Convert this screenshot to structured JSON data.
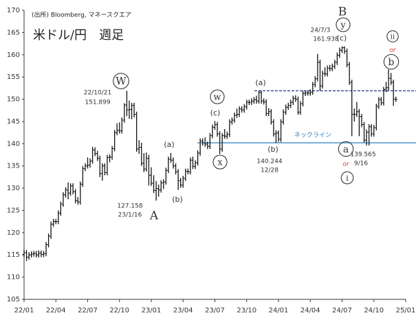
{
  "chart_data": {
    "type": "ohlc",
    "title": "米ドル/円　週足",
    "source": "(出所) Bloomberg, マネースクエア",
    "categories": [
      "22/01",
      null,
      null,
      null,
      null,
      null,
      null,
      null,
      null,
      null,
      null,
      null,
      null,
      "22/04",
      null,
      null,
      null,
      null,
      null,
      null,
      null,
      null,
      null,
      null,
      null,
      null,
      "22/07",
      null,
      null,
      null,
      null,
      null,
      null,
      null,
      null,
      null,
      null,
      null,
      null,
      "22/10",
      null,
      null,
      null,
      null,
      null,
      null,
      null,
      null,
      null,
      null,
      null,
      null,
      "23/01",
      null,
      null,
      null,
      null,
      null,
      null,
      null,
      null,
      null,
      null,
      null,
      null,
      "23/04",
      null,
      null,
      null,
      null,
      null,
      null,
      null,
      null,
      null,
      null,
      null,
      null,
      "23/07",
      null,
      null,
      null,
      null,
      null,
      null,
      null,
      null,
      null,
      null,
      null,
      null,
      "23/10",
      null,
      null,
      null,
      null,
      null,
      null,
      null,
      null,
      null,
      null,
      null,
      null,
      "24/01",
      null,
      null,
      null,
      null,
      null,
      null,
      null,
      null,
      null,
      null,
      null,
      null,
      "24/04",
      null,
      null,
      null,
      null,
      null,
      null,
      null,
      null,
      null,
      null,
      null,
      null,
      "24/07",
      null,
      null,
      null,
      null,
      null,
      null,
      null,
      null,
      null,
      null,
      null,
      null,
      "24/10",
      null,
      null,
      null,
      null,
      null,
      null,
      null,
      null,
      null,
      null,
      null,
      null,
      "25/01"
    ],
    "open": [
      115.1,
      115.5,
      114.5,
      115.0,
      115.2,
      115.3,
      115.0,
      115.4,
      115.1,
      115.3,
      117.3,
      119.2,
      121.9,
      122.5,
      122.5,
      124.4,
      126.4,
      128.5,
      129.6,
      128.9,
      130.5,
      129.2,
      127.2,
      126.9,
      130.9,
      134.4,
      135.0,
      135.2,
      136.1,
      138.6,
      137.8,
      136.7,
      133.3,
      135.0,
      133.5,
      136.9,
      137.0,
      138.9,
      142.5,
      143.0,
      142.9,
      145.3,
      148.7,
      147.6,
      147.7,
      148.6,
      146.6,
      138.8,
      139.2,
      135.6,
      134.3,
      136.7,
      132.9,
      131.1,
      129.5,
      129.9,
      129.6,
      131.2,
      131.4,
      134.0,
      136.5,
      136.3,
      135.0,
      133.7,
      131.7,
      130.7,
      132.2,
      133.8,
      133.7,
      136.3,
      134.9,
      135.7,
      137.9,
      140.6,
      140.2,
      139.9,
      139.4,
      141.8,
      143.7,
      144.3,
      142.2,
      138.8,
      141.8,
      141.7,
      142.1,
      144.9,
      145.3,
      146.4,
      146.6,
      147.8,
      147.6,
      148.3,
      149.3,
      149.3,
      149.6,
      149.9,
      149.6,
      151.5,
      149.6,
      149.4,
      146.8,
      147.2,
      144.9,
      142.2,
      142.4,
      141.0,
      144.9,
      147.1,
      148.2,
      148.6,
      149.3,
      150.2,
      150.0,
      147.1,
      149.0,
      151.3,
      151.4,
      151.4,
      151.6,
      153.3,
      154.6,
      158.3,
      153.0,
      155.8,
      155.7,
      157.0,
      156.9,
      157.4,
      158.3,
      159.9,
      161.0,
      161.6,
      160.8,
      157.8,
      153.8,
      146.6,
      146.6,
      147.2,
      146.1,
      144.3,
      140.8,
      142.6,
      143.8,
      142.2,
      143.6,
      148.4,
      149.9,
      149.2,
      152.2,
      152.6,
      154.7,
      153.8,
      150.0,
      null,
      null,
      null,
      null
    ],
    "high": [
      116.1,
      116.1,
      115.6,
      115.8,
      115.9,
      115.9,
      116.0,
      116.0,
      115.9,
      117.9,
      119.8,
      122.5,
      123.1,
      123.1,
      125.0,
      127.0,
      129.1,
      130.2,
      131.3,
      131.1,
      131.1,
      129.8,
      128.0,
      131.5,
      135.0,
      135.6,
      136.9,
      136.7,
      139.3,
      139.2,
      138.4,
      137.3,
      135.6,
      135.6,
      137.5,
      137.6,
      139.5,
      143.1,
      144.6,
      144.8,
      145.9,
      149.1,
      151.9,
      149.7,
      149.2,
      149.2,
      147.2,
      140.8,
      140.2,
      137.9,
      138.0,
      137.5,
      134.7,
      132.9,
      131.6,
      130.8,
      131.8,
      132.0,
      134.6,
      137.1,
      137.9,
      136.9,
      135.6,
      134.3,
      132.3,
      132.8,
      134.4,
      134.4,
      136.9,
      137.1,
      136.3,
      138.5,
      141.2,
      141.2,
      141.4,
      140.5,
      142.4,
      144.3,
      145.1,
      144.9,
      142.8,
      142.4,
      143.3,
      142.7,
      145.5,
      145.9,
      147.0,
      147.9,
      148.4,
      148.4,
      148.9,
      149.9,
      149.9,
      150.2,
      150.5,
      150.8,
      151.9,
      151.9,
      150.2,
      150.0,
      148.0,
      147.8,
      145.5,
      143.0,
      143.0,
      145.5,
      147.7,
      148.8,
      149.2,
      149.9,
      150.8,
      150.9,
      150.6,
      149.6,
      151.9,
      151.9,
      152.0,
      152.2,
      153.9,
      155.2,
      160.2,
      158.9,
      156.4,
      157.2,
      157.6,
      157.7,
      158.0,
      158.9,
      160.5,
      161.6,
      161.9,
      161.9,
      161.4,
      158.4,
      154.4,
      147.9,
      149.4,
      147.8,
      146.7,
      144.9,
      143.2,
      144.4,
      144.4,
      144.2,
      149.0,
      150.5,
      150.5,
      152.8,
      153.9,
      156.7,
      155.9,
      154.4,
      150.6,
      null,
      null,
      null,
      null
    ],
    "low": [
      114.5,
      113.6,
      113.9,
      114.4,
      114.6,
      114.4,
      114.4,
      114.5,
      114.5,
      114.7,
      116.7,
      118.6,
      121.3,
      121.9,
      121.9,
      123.8,
      125.8,
      127.9,
      127.5,
      128.3,
      128.6,
      126.6,
      126.3,
      126.3,
      130.3,
      133.8,
      134.4,
      134.6,
      135.5,
      137.2,
      136.1,
      132.5,
      131.7,
      132.9,
      132.9,
      135.8,
      136.4,
      138.3,
      141.9,
      142.3,
      142.3,
      144.7,
      146.2,
      145.6,
      145.5,
      145.9,
      138.2,
      137.7,
      135.0,
      133.6,
      133.7,
      130.6,
      130.5,
      128.9,
      127.2,
      128.1,
      129.0,
      129.8,
      130.8,
      133.4,
      135.7,
      134.4,
      133.1,
      129.6,
      130.1,
      130.1,
      131.6,
      133.1,
      133.1,
      134.3,
      134.3,
      135.1,
      137.3,
      139.6,
      139.3,
      138.8,
      138.8,
      141.2,
      143.1,
      141.6,
      137.7,
      138.2,
      141.1,
      141.1,
      141.5,
      144.3,
      144.7,
      145.8,
      146.0,
      147.0,
      147.0,
      147.7,
      148.7,
      148.7,
      149.0,
      149.0,
      149.0,
      149.0,
      148.8,
      146.2,
      146.2,
      144.3,
      141.6,
      140.2,
      140.4,
      140.4,
      144.3,
      146.5,
      147.6,
      148.0,
      148.7,
      149.4,
      146.5,
      146.5,
      148.4,
      150.7,
      150.8,
      150.8,
      151.0,
      152.7,
      154.0,
      151.9,
      152.4,
      155.1,
      155.1,
      156.3,
      156.3,
      156.8,
      157.7,
      159.3,
      160.4,
      160.2,
      157.2,
      153.2,
      141.7,
      145.0,
      146.0,
      141.7,
      143.7,
      140.3,
      139.6,
      139.6,
      141.6,
      141.6,
      143.0,
      147.8,
      148.6,
      148.6,
      151.6,
      152.0,
      153.2,
      148.5,
      149.4,
      null,
      null,
      null,
      null
    ],
    "close": [
      115.5,
      114.5,
      115.0,
      115.2,
      115.3,
      115.0,
      115.4,
      115.1,
      115.3,
      117.3,
      119.2,
      121.9,
      122.5,
      122.5,
      124.4,
      126.4,
      128.5,
      129.6,
      128.9,
      130.5,
      129.2,
      127.2,
      126.9,
      130.9,
      134.4,
      135.0,
      135.2,
      136.1,
      138.6,
      137.8,
      136.7,
      133.3,
      135.0,
      133.5,
      136.9,
      137.0,
      138.9,
      142.5,
      143.0,
      142.9,
      145.3,
      148.7,
      147.6,
      147.7,
      148.6,
      146.6,
      138.8,
      139.2,
      135.6,
      134.3,
      136.7,
      132.9,
      131.1,
      129.5,
      129.9,
      129.6,
      131.2,
      131.4,
      134.0,
      136.5,
      136.3,
      135.0,
      133.7,
      131.7,
      130.7,
      132.2,
      133.8,
      133.7,
      136.3,
      134.9,
      135.7,
      137.9,
      140.6,
      140.2,
      139.9,
      139.4,
      141.8,
      143.7,
      144.3,
      142.2,
      138.8,
      141.8,
      141.7,
      142.1,
      144.9,
      145.3,
      146.4,
      146.6,
      147.8,
      147.6,
      148.3,
      149.3,
      149.3,
      149.6,
      149.9,
      149.6,
      151.5,
      149.6,
      149.4,
      146.8,
      147.2,
      144.9,
      142.2,
      142.4,
      141.0,
      144.9,
      147.1,
      148.2,
      148.6,
      149.3,
      150.2,
      150.0,
      147.1,
      149.0,
      151.3,
      151.4,
      151.4,
      151.6,
      153.3,
      154.6,
      158.3,
      153.0,
      155.8,
      155.7,
      157.0,
      156.9,
      157.4,
      158.3,
      159.9,
      161.0,
      161.6,
      160.8,
      157.8,
      153.8,
      146.6,
      146.6,
      147.2,
      146.1,
      144.3,
      140.8,
      142.6,
      143.8,
      142.2,
      143.6,
      148.4,
      149.9,
      149.2,
      152.2,
      152.6,
      154.7,
      153.8,
      150.0,
      150.0,
      null,
      null,
      null,
      null
    ],
    "color": "#111111",
    "ylim": [
      105,
      170
    ],
    "yticks": [
      105,
      110,
      115,
      120,
      125,
      130,
      135,
      140,
      145,
      150,
      155,
      160,
      165,
      170
    ],
    "grid": false,
    "reference_lines": [
      {
        "value": 151.9,
        "color": "#1f2f8a",
        "style": "dashed"
      },
      {
        "value": 140.2,
        "color": "#2a7fc0",
        "style": "solid",
        "label": "ネックライン"
      }
    ],
    "annotations": [
      {
        "text": "W",
        "circled": true
      },
      {
        "text": "22/10/21"
      },
      {
        "text": "151.899"
      },
      {
        "text": "(a)"
      },
      {
        "text": "(b)"
      },
      {
        "text": "127.158"
      },
      {
        "text": "23/1/16"
      },
      {
        "text": "A"
      },
      {
        "text": "w",
        "circled": true
      },
      {
        "text": "(c)"
      },
      {
        "text": "x",
        "circled": true
      },
      {
        "text": "(a)"
      },
      {
        "text": "(b)"
      },
      {
        "text": "140.244"
      },
      {
        "text": "12/28"
      },
      {
        "text": "B"
      },
      {
        "text": "y",
        "circled": true
      },
      {
        "text": "(c)"
      },
      {
        "text": "24/7/3"
      },
      {
        "text": "161.938"
      },
      {
        "text": "a",
        "circled": true
      },
      {
        "text": "139.565"
      },
      {
        "text": "9/16"
      },
      {
        "text": "or",
        "color": "#d04040"
      },
      {
        "text": "i",
        "circled": true
      },
      {
        "text": "ii",
        "circled": true
      },
      {
        "text": "or",
        "color": "#d04040"
      },
      {
        "text": "b",
        "circled": true
      }
    ]
  }
}
